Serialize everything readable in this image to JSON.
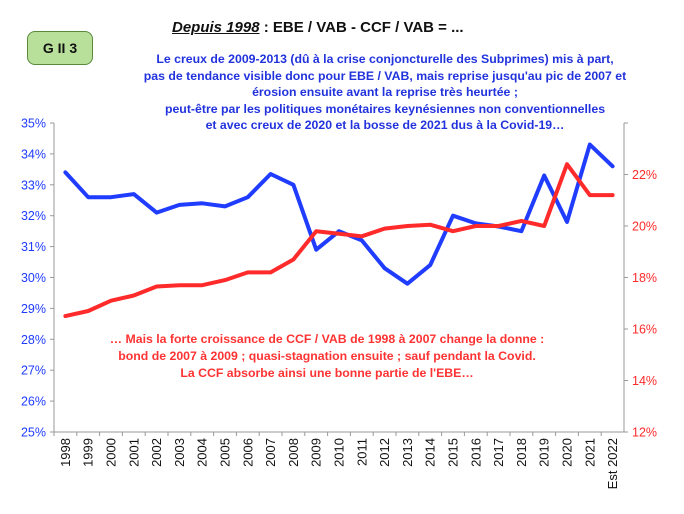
{
  "badge": "G II 3",
  "title": {
    "part1": "Depuis 1998",
    "part2": " : EBE / VAB   -    CCF / VAB =  ..."
  },
  "note_blue": [
    "Le creux de 2009-2013 (dû à la crise conjoncturelle des Subprimes) mis à part,",
    "pas de tendance visible donc pour EBE / VAB, mais reprise jusqu'au pic de 2007 et",
    "érosion ensuite avant la reprise très heurtée ;",
    "peut-être par les politiques monétaires keynésiennes non conventionnelles",
    "et avec creux de 2020 et la bosse de 2021 dus à la Covid-19…"
  ],
  "note_red": [
    "… Mais la forte croissance de CCF / VAB de 1998 à 2007 change la donne :",
    "bond de 2007 à 2009 ; quasi-stagnation ensuite ; sauf pendant la Covid.",
    "La CCF absorbe ainsi une bonne partie de l'EBE…"
  ],
  "colors": {
    "ebe": "#1f3cff",
    "ccf": "#ff2a2a",
    "left_axis": "#1f3cff",
    "right_axis": "#ff2a2a"
  },
  "chart_data": {
    "type": "line",
    "categories": [
      "1998",
      "1999",
      "2000",
      "2001",
      "2002",
      "2003",
      "2004",
      "2005",
      "2006",
      "2007",
      "2008",
      "2009",
      "2010",
      "2011",
      "2012",
      "2013",
      "2014",
      "2015",
      "2016",
      "2017",
      "2018",
      "2019",
      "2020",
      "2021",
      "Est 2022"
    ],
    "series": [
      {
        "name": "EBE / VAB",
        "axis": "left",
        "values": [
          33.4,
          32.6,
          32.6,
          32.7,
          32.1,
          32.35,
          32.4,
          32.3,
          32.6,
          33.35,
          33.0,
          30.9,
          31.5,
          31.2,
          30.3,
          29.8,
          30.4,
          32.0,
          31.75,
          31.65,
          31.5,
          33.3,
          31.8,
          34.3,
          33.6
        ]
      },
      {
        "name": "CCF / VAB",
        "axis": "right",
        "values": [
          16.5,
          16.7,
          17.1,
          17.3,
          17.65,
          17.7,
          17.7,
          17.9,
          18.2,
          18.2,
          18.7,
          19.8,
          19.7,
          19.6,
          19.9,
          20.0,
          20.05,
          19.8,
          20.0,
          20.0,
          20.2,
          20.0,
          22.4,
          21.2,
          21.2
        ]
      }
    ],
    "y_left": {
      "lim": [
        25,
        35
      ],
      "ticks": [
        "25%",
        "26%",
        "27%",
        "28%",
        "29%",
        "30%",
        "31%",
        "32%",
        "33%",
        "34%",
        "35%"
      ]
    },
    "y_right": {
      "lim": [
        12,
        24
      ],
      "ticks": [
        "12%",
        "14%",
        "16%",
        "18%",
        "20%",
        "22%"
      ]
    },
    "grid": false
  }
}
